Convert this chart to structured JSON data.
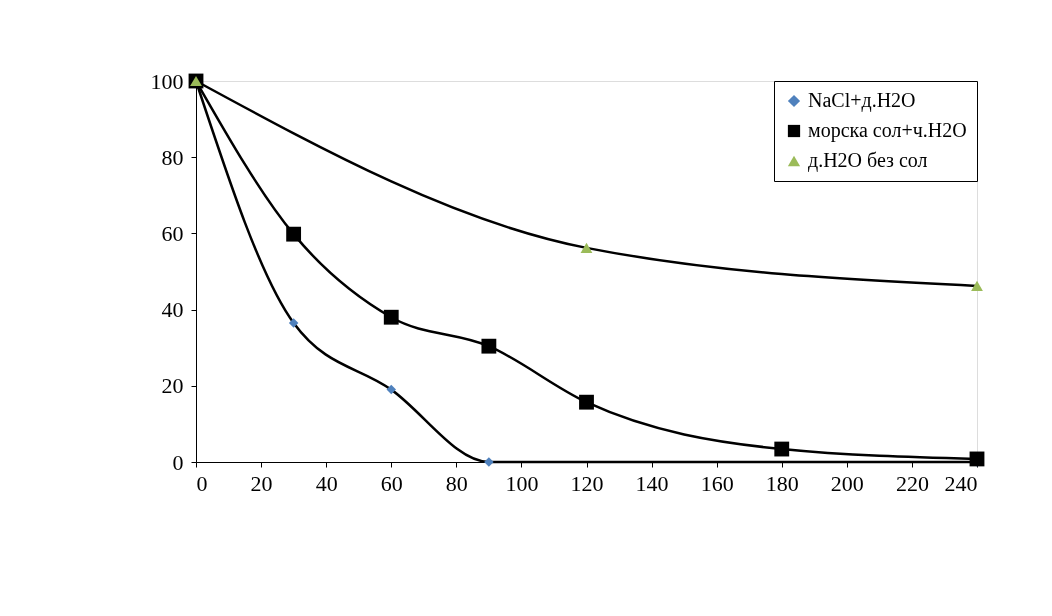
{
  "chart_data": {
    "type": "line",
    "xlim": [
      0,
      240
    ],
    "xticks": [
      0,
      20,
      40,
      60,
      80,
      100,
      120,
      140,
      160,
      180,
      200,
      220,
      240
    ],
    "ylim": [
      0,
      100
    ],
    "yticks": [
      0,
      20,
      40,
      60,
      80,
      100
    ],
    "grid": false,
    "legend": "top right",
    "series": [
      {
        "name": "NaCl+д.H2O",
        "color": "#4f81bd",
        "marker": "diamond",
        "x": [
          0,
          30,
          60,
          90,
          240
        ],
        "values": [
          100,
          36.5,
          19,
          0,
          0
        ]
      },
      {
        "name": "морска сол+ч.H2O",
        "color": "#000000",
        "marker": "square",
        "x": [
          0,
          30,
          60,
          90,
          120,
          180,
          240
        ],
        "values": [
          100,
          59.8,
          38,
          30.4,
          15.7,
          3.4,
          0.8
        ]
      },
      {
        "name": "д.H2O без сол",
        "color": "#9bbb59",
        "marker": "triangle",
        "x": [
          0,
          120,
          240
        ],
        "values": [
          100,
          56.2,
          46.2
        ]
      }
    ]
  }
}
